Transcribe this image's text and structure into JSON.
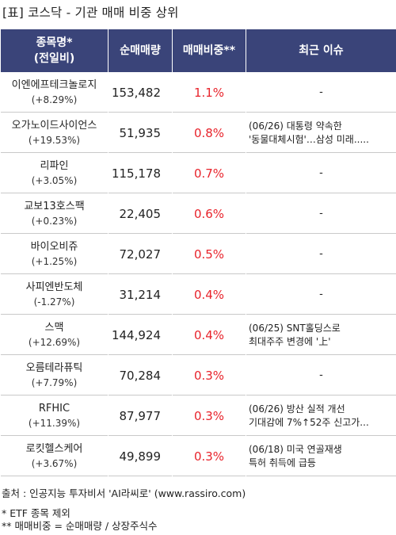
{
  "title": "[표] 코스닥 - 기관 매매 비중 상위",
  "headers": {
    "name": [
      "종목명*",
      "(전일비)"
    ],
    "volume": "순매매량",
    "ratio": "매매비중**",
    "issue": "최근 이슈"
  },
  "rows": [
    {
      "name": "이엔에프테크놀로지",
      "change": "(+8.29%)",
      "volume": "153,482",
      "ratio": "1.1%",
      "issue": [
        "-"
      ]
    },
    {
      "name": "오가노이드사이언스",
      "change": "(+19.53%)",
      "volume": "51,935",
      "ratio": "0.8%",
      "issue": [
        "(06/26) 대통령 약속한",
        "'동물대체시험'…삼성 미래....."
      ]
    },
    {
      "name": "리파인",
      "change": "(+3.05%)",
      "volume": "115,178",
      "ratio": "0.7%",
      "issue": [
        "-"
      ]
    },
    {
      "name": "교보13호스팩",
      "change": "(+0.23%)",
      "volume": "22,405",
      "ratio": "0.6%",
      "issue": [
        "-"
      ]
    },
    {
      "name": "바이오비쥬",
      "change": "(+1.25%)",
      "volume": "72,027",
      "ratio": "0.5%",
      "issue": [
        "-"
      ]
    },
    {
      "name": "사피엔반도체",
      "change": "(-1.27%)",
      "volume": "31,214",
      "ratio": "0.4%",
      "issue": [
        "-"
      ]
    },
    {
      "name": "스맥",
      "change": "(+12.69%)",
      "volume": "144,924",
      "ratio": "0.4%",
      "issue": [
        "(06/25) SNT홀딩스로",
        "최대주주 변경에 '上'"
      ]
    },
    {
      "name": "오름테라퓨틱",
      "change": "(+7.79%)",
      "volume": "70,284",
      "ratio": "0.3%",
      "issue": [
        "-"
      ]
    },
    {
      "name": "RFHIC",
      "change": "(+11.39%)",
      "volume": "87,977",
      "ratio": "0.3%",
      "issue": [
        "(06/26) 방산 실적 개선",
        "기대감에 7%↑52주 신고가..."
      ]
    },
    {
      "name": "로킷헬스케어",
      "change": "(+3.67%)",
      "volume": "49,899",
      "ratio": "0.3%",
      "issue": [
        "(06/18) 미국 연골재생",
        "특허 취득에 급등"
      ]
    }
  ],
  "footer": {
    "source": "출처 : 인공지능 투자비서 'AI라씨로' (www.rassiro.com)",
    "note1": "* ETF 종목 제외",
    "note2": "** 매매비중 = 순매매량 / 상장주식수"
  }
}
